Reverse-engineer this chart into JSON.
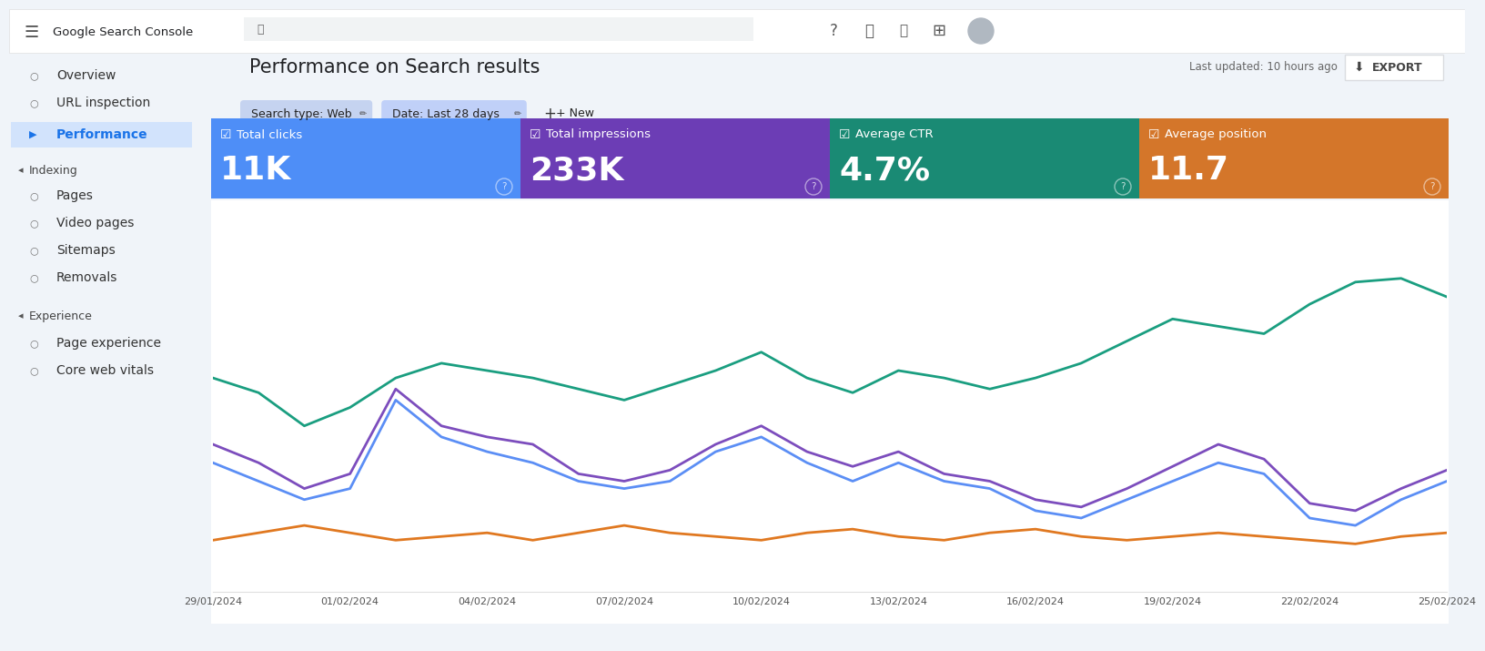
{
  "title": "Performance on Search results",
  "bg_color": "#f0f4f9",
  "chart_bg": "#ffffff",
  "metrics": [
    {
      "label": "Total clicks",
      "value": "11K",
      "color": "#4e8ef7"
    },
    {
      "label": "Total impressions",
      "value": "233K",
      "color": "#6c3db5"
    },
    {
      "label": "Average CTR",
      "value": "4.7%",
      "color": "#1a8a74"
    },
    {
      "label": "Average position",
      "value": "11.7",
      "color": "#d4762a"
    }
  ],
  "x_labels": [
    "29/01/2024",
    "01/02/2024",
    "04/02/2024",
    "07/02/2024",
    "10/02/2024",
    "13/02/2024",
    "16/02/2024",
    "19/02/2024",
    "22/02/2024",
    "25/02/2024"
  ],
  "lines": {
    "clicks": {
      "color": "#5b8ef5",
      "values": [
        0.35,
        0.3,
        0.25,
        0.28,
        0.52,
        0.42,
        0.38,
        0.35,
        0.3,
        0.28,
        0.3,
        0.38,
        0.42,
        0.35,
        0.3,
        0.35,
        0.3,
        0.28,
        0.22,
        0.2,
        0.25,
        0.3,
        0.35,
        0.32,
        0.2,
        0.18,
        0.25,
        0.3
      ]
    },
    "impressions": {
      "color": "#7c4dbd",
      "values": [
        0.4,
        0.35,
        0.28,
        0.32,
        0.55,
        0.45,
        0.42,
        0.4,
        0.32,
        0.3,
        0.33,
        0.4,
        0.45,
        0.38,
        0.34,
        0.38,
        0.32,
        0.3,
        0.25,
        0.23,
        0.28,
        0.34,
        0.4,
        0.36,
        0.24,
        0.22,
        0.28,
        0.33
      ]
    },
    "ctr": {
      "color": "#1a9e80",
      "values": [
        0.58,
        0.54,
        0.45,
        0.5,
        0.58,
        0.62,
        0.6,
        0.58,
        0.55,
        0.52,
        0.56,
        0.6,
        0.65,
        0.58,
        0.54,
        0.6,
        0.58,
        0.55,
        0.58,
        0.62,
        0.68,
        0.74,
        0.72,
        0.7,
        0.78,
        0.84,
        0.85,
        0.8
      ]
    },
    "position": {
      "color": "#e07820",
      "values": [
        0.14,
        0.16,
        0.18,
        0.16,
        0.14,
        0.15,
        0.16,
        0.14,
        0.16,
        0.18,
        0.16,
        0.15,
        0.14,
        0.16,
        0.17,
        0.15,
        0.14,
        0.16,
        0.17,
        0.15,
        0.14,
        0.15,
        0.16,
        0.15,
        0.14,
        0.13,
        0.15,
        0.16
      ]
    }
  },
  "sidebar_bg": "#f0f4f9",
  "filter_labels": [
    "Search type: Web",
    "Date: Last 28 days",
    "+ New"
  ],
  "top_right": "Last updated: 10 hours ago",
  "export_label": "EXPORT",
  "nav_bg": "#ffffff",
  "selected_item_bg": "#d2e3fc",
  "selected_item_color": "#1a73e8"
}
